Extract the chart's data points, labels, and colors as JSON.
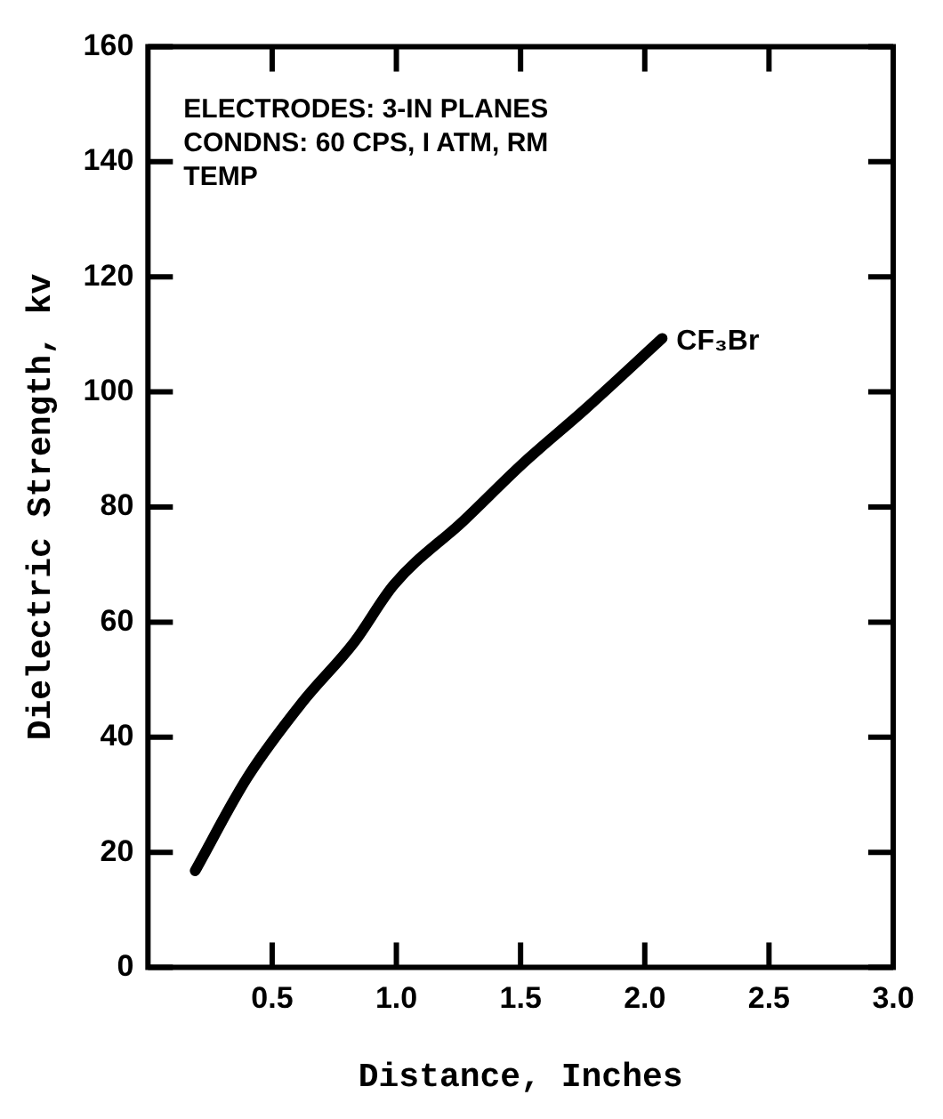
{
  "chart_data": {
    "type": "line",
    "xlabel": "Distance, Inches",
    "ylabel": "Dielectric Strength, kv",
    "annotations": [
      "ELECTRODES: 3-IN PLANES\nCONDNS: 60 CPS, I ATM, RM\nTEMP"
    ],
    "series": [
      {
        "name": "CF₃Br",
        "color": "#000000",
        "x": [
          0.19,
          0.4,
          0.62,
          0.83,
          0.99,
          1.27,
          1.51,
          1.76,
          2.07
        ],
        "values": [
          16.8,
          33,
          46,
          56.5,
          66.5,
          77.6,
          87.6,
          97,
          109.3
        ]
      }
    ],
    "xlim": [
      0,
      3
    ],
    "xticks": [
      {
        "value": 0.5,
        "label": "0.5"
      },
      {
        "value": 1,
        "label": "1.0"
      },
      {
        "value": 1.5,
        "label": "1.5"
      },
      {
        "value": 2,
        "label": "2.0"
      },
      {
        "value": 2.5,
        "label": "2.5"
      },
      {
        "value": 3,
        "label": "3.0"
      }
    ],
    "ylim": [
      0,
      160
    ],
    "yticks": [
      0,
      20,
      40,
      60,
      80,
      100,
      120,
      140,
      160
    ],
    "grid": false,
    "legend": false,
    "marker": "none",
    "line_style": "solid"
  }
}
